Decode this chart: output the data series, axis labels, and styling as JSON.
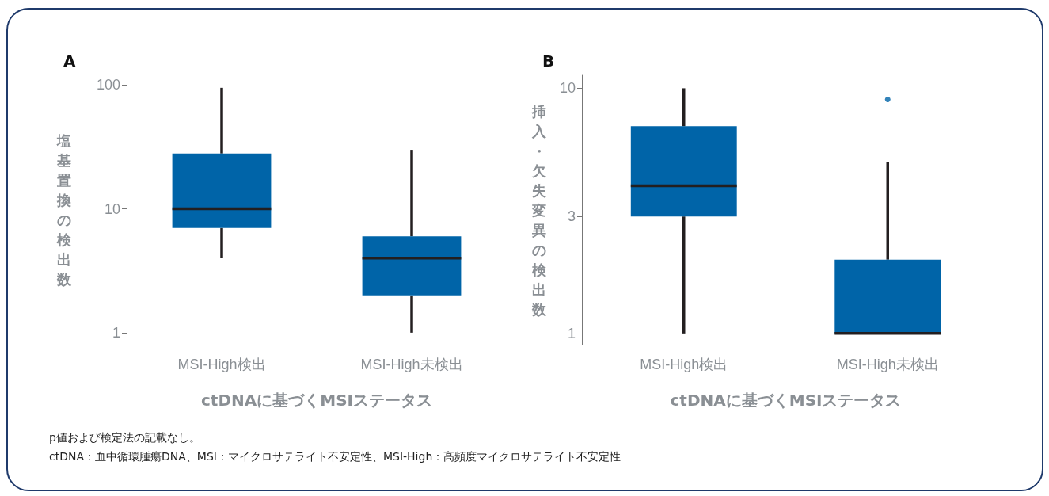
{
  "chart_data": [
    {
      "type": "box",
      "title": "A",
      "xlabel": "ctDNAに基づくMSIステータス",
      "ylabel": "塩基置換の検出数",
      "categories": [
        "MSI-High検出",
        "MSI-High未検出"
      ],
      "log": "y",
      "ylim": [
        0.8,
        120
      ],
      "yticks": [
        1,
        10,
        100
      ],
      "grid": false,
      "color": "#0064a8",
      "boxes": [
        {
          "low": 4,
          "q1": 7,
          "median": 10,
          "q3": 28,
          "high": 95
        },
        {
          "low": 1,
          "q1": 2,
          "median": 4,
          "q3": 6,
          "high": 30
        }
      ]
    },
    {
      "type": "box",
      "title": "B",
      "xlabel": "ctDNAに基づくMSIステータス",
      "ylabel": "挿入・欠失変異の検出数",
      "categories": [
        "MSI-High検出",
        "MSI-High未検出"
      ],
      "log": "y",
      "ylim": [
        0.9,
        11.3
      ],
      "yticks": [
        1,
        3,
        10
      ],
      "grid": false,
      "color": "#0064a8",
      "boxes": [
        {
          "low": 1,
          "q1": 3,
          "median": 4,
          "q3": 7,
          "high": 10
        },
        {
          "low": 1,
          "q1": 1,
          "median": 1,
          "q3": 2,
          "high": 5,
          "outliers": [
            9
          ]
        }
      ],
      "annotations": [
        "p値および検定法の記載なし。",
        "ctDNA：血中循環腫瘍DNA、MSI：マイクロサテライト不安定性、MSI-High：高頻度マイクロサテライト不安定性"
      ]
    }
  ]
}
